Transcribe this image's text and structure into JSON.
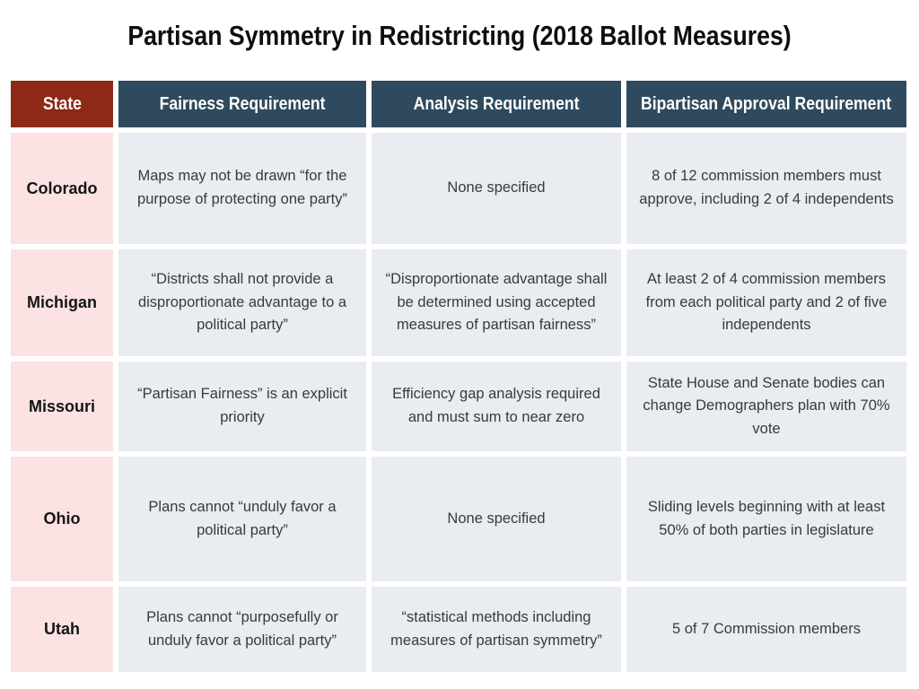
{
  "title": "Partisan Symmetry in Redistricting (2018 Ballot Measures)",
  "colors": {
    "state_header_bg": "#8E2817",
    "column_header_bg": "#2F4A5E",
    "state_cell_bg": "#FCE2E2",
    "body_cell_bg": "#E9ECF0",
    "header_text": "#FFFFFF",
    "body_text": "#3A3A3A",
    "page_bg": "#FFFFFF"
  },
  "table": {
    "columns": [
      "State",
      "Fairness Requirement",
      "Analysis Requirement",
      "Bipartisan Approval Requirement"
    ],
    "rows": [
      {
        "state": "Colorado",
        "fairness": "Maps may not be drawn “for the purpose of protecting one party”",
        "analysis": "None specified",
        "bipartisan": "8 of 12 commission members must approve, including 2 of 4 independents"
      },
      {
        "state": "Michigan",
        "fairness": "“Districts shall not provide a disproportionate advantage to a political party”",
        "analysis": "“Disproportionate advantage shall be determined using accepted measures of partisan fairness”",
        "bipartisan": "At least 2 of 4 commission members from each political party and 2 of five independents"
      },
      {
        "state": "Missouri",
        "fairness": "“Partisan Fairness” is an explicit priority",
        "analysis": "Efficiency gap analysis required and must sum to near zero",
        "bipartisan": "State House and Senate bodies can change Demographers plan with 70% vote"
      },
      {
        "state": "Ohio",
        "fairness": "Plans cannot “unduly favor a political party”",
        "analysis": "None specified",
        "bipartisan": "Sliding levels beginning with at least 50% of both parties in legislature"
      },
      {
        "state": "Utah",
        "fairness": "Plans cannot “purposefully or unduly favor a political party”",
        "analysis": "“statistical methods including measures of partisan symmetry”",
        "bipartisan": "5 of 7 Commission members"
      }
    ]
  },
  "chart_data": {
    "type": "table",
    "title": "Partisan Symmetry in Redistricting (2018 Ballot Measures)",
    "columns": [
      "State",
      "Fairness Requirement",
      "Analysis Requirement",
      "Bipartisan Approval Requirement"
    ],
    "rows": [
      [
        "Colorado",
        "Maps may not be drawn “for the purpose of protecting one party”",
        "None specified",
        "8 of 12 commission members must approve, including 2 of 4 independents"
      ],
      [
        "Michigan",
        "“Districts shall not provide a disproportionate advantage to a political party”",
        "“Disproportionate advantage shall be determined using accepted measures of partisan fairness”",
        "At least 2 of 4 commission members from each political party and 2 of five independents"
      ],
      [
        "Missouri",
        "“Partisan Fairness” is an explicit priority",
        "Efficiency gap analysis required and must sum to near zero",
        "State House and Senate bodies can change Demographers plan with 70% vote"
      ],
      [
        "Ohio",
        "Plans cannot “unduly favor a political party”",
        "None specified",
        "Sliding levels beginning with at least 50% of both parties in legislature"
      ],
      [
        "Utah",
        "Plans cannot “purposefully or unduly favor a political party”",
        "“statistical methods including measures of partisan symmetry”",
        "5 of 7 Commission members"
      ]
    ]
  }
}
